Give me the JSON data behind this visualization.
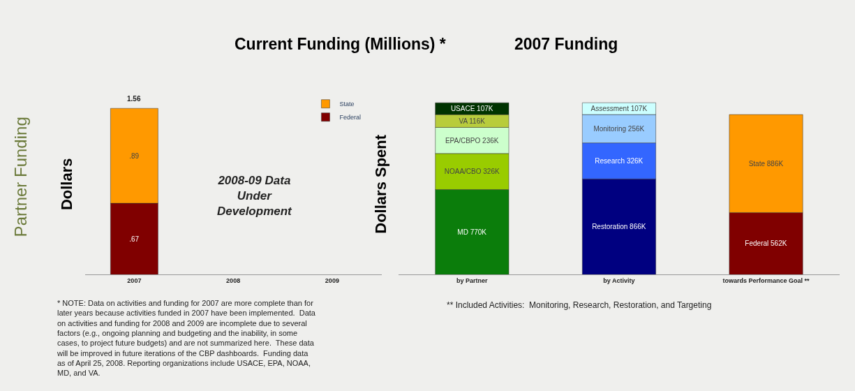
{
  "chart_data": [
    {
      "type": "bar",
      "title": "Current Funding (Millions) *",
      "ylabel": "Dollars",
      "categories": [
        "2007",
        "2008",
        "2009"
      ],
      "stacked": true,
      "legend": "top right",
      "series": [
        {
          "name": "Federal",
          "color": "#800000",
          "values": [
            0.67,
            null,
            null
          ],
          "value_labels": [
            ".67",
            null,
            null
          ]
        },
        {
          "name": "State",
          "color": "#ff9900",
          "values": [
            0.89,
            null,
            null
          ],
          "value_labels": [
            ".89",
            null,
            null
          ]
        }
      ],
      "totals": [
        "1.56",
        null,
        null
      ],
      "annotations": [
        "2008-09 Data Under Development",
        "* NOTE: Data on activities and funding for 2007 are more complete than for later years because activities funded in 2007 have been implemented.  Data on activities and funding for 2008 and 2009 are incomplete due to several factors (e.g., ongoing planning and budgeting and the inability, in some cases, to project future budgets) and are not summarized here.  These data will be improved in future iterations of the CBP dashboards.  Funding data as of April 25, 2008. Reporting organizations include USACE, EPA, NOAA, MD, and VA.",
        "Partner Funding"
      ]
    },
    {
      "type": "bar",
      "title": "2007 Funding",
      "ylabel": "Dollars Spent",
      "categories": [
        "by Partner",
        "by Activity",
        "towards Performance Goal **"
      ],
      "stacked": true,
      "series": [
        {
          "color": "#0b7d0b",
          "values": [
            770000,
            null,
            null
          ],
          "value_labels": [
            "MD 770K",
            null,
            null
          ]
        },
        {
          "color": "#99cc00",
          "values": [
            326000,
            null,
            null
          ],
          "value_labels": [
            "NOAA/CBO 326K",
            null,
            null
          ]
        },
        {
          "color": "#ccffcc",
          "values": [
            236000,
            null,
            null
          ],
          "value_labels": [
            "EPA/CBPO 236K",
            null,
            null
          ]
        },
        {
          "color": "#b8cc3c",
          "values": [
            116000,
            null,
            null
          ],
          "value_labels": [
            "VA 116K",
            null,
            null
          ]
        },
        {
          "color": "#003300",
          "values": [
            107000,
            null,
            null
          ],
          "value_labels": [
            "USACE 107K",
            null,
            null
          ]
        },
        {
          "color": "#000080",
          "values": [
            null,
            866000,
            null
          ],
          "value_labels": [
            null,
            "Restoration 866K",
            null
          ]
        },
        {
          "color": "#3366ff",
          "values": [
            null,
            326000,
            null
          ],
          "value_labels": [
            null,
            "Research 326K",
            null
          ]
        },
        {
          "color": "#99ccff",
          "values": [
            null,
            256000,
            null
          ],
          "value_labels": [
            null,
            "Monitoring 256K",
            null
          ]
        },
        {
          "color": "#ccffff",
          "values": [
            null,
            107000,
            null
          ],
          "value_labels": [
            null,
            "Assessment 107K",
            null
          ]
        },
        {
          "color": "#800000",
          "values": [
            null,
            null,
            562000
          ],
          "value_labels": [
            null,
            null,
            "Federal 562K"
          ]
        },
        {
          "color": "#ff9900",
          "values": [
            null,
            null,
            886000
          ],
          "value_labels": [
            null,
            null,
            "State 886K"
          ]
        }
      ],
      "annotations": [
        "** Included Activities:  Monitoring, Research, Restoration, and Targeting"
      ]
    }
  ]
}
